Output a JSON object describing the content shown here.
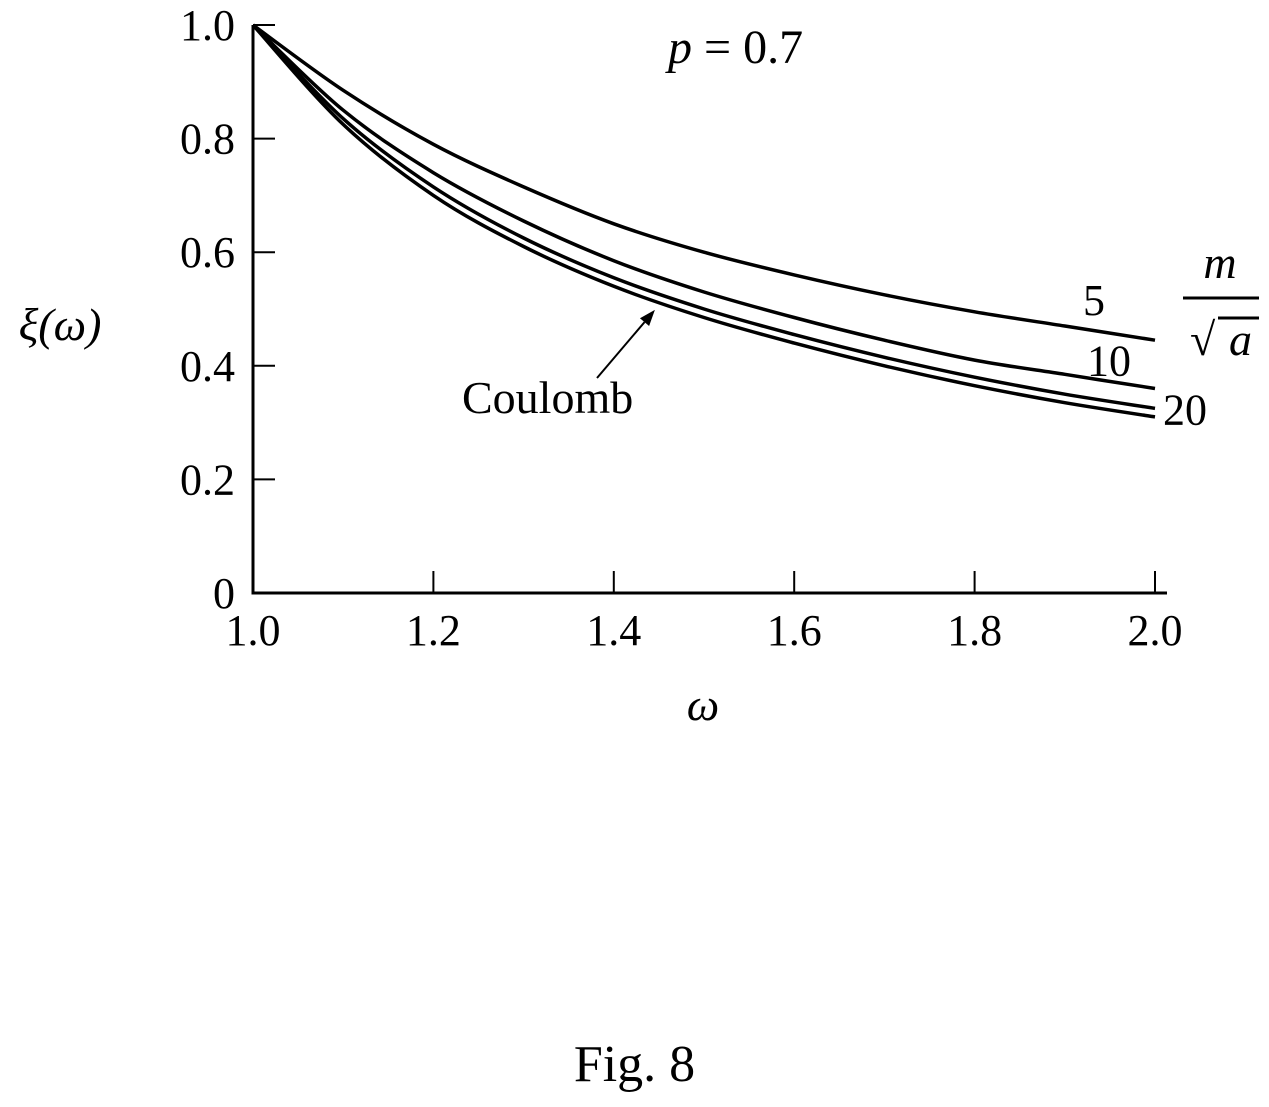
{
  "chart_data": {
    "type": "line",
    "title": "p = 0.7",
    "title_var": "p",
    "title_rest": " = 0.7",
    "xlabel": "ω",
    "ylabel": "ξ(ω)",
    "xlim": [
      1.0,
      2.0
    ],
    "ylim": [
      0,
      1.0
    ],
    "x_ticks": [
      1.0,
      1.2,
      1.4,
      1.6,
      1.8,
      2.0
    ],
    "x_tick_labels": [
      "1.0",
      "1.2",
      "1.4",
      "1.6",
      "1.8",
      "2.0"
    ],
    "y_ticks": [
      0,
      0.2,
      0.4,
      0.6,
      0.8,
      1.0
    ],
    "y_tick_labels": [
      "0",
      "0.2",
      "0.4",
      "0.6",
      "0.8",
      "1.0"
    ],
    "grid": false,
    "legend_title": {
      "numerator": "m",
      "denominator": "a",
      "radical": "√"
    },
    "series": [
      {
        "name": "5",
        "x": [
          1.0,
          1.1,
          1.2,
          1.3,
          1.4,
          1.5,
          1.6,
          1.7,
          1.8,
          1.9,
          2.0
        ],
        "y": [
          1.0,
          0.885,
          0.79,
          0.715,
          0.65,
          0.6,
          0.56,
          0.525,
          0.495,
          0.47,
          0.445
        ]
      },
      {
        "name": "10",
        "x": [
          1.0,
          1.1,
          1.2,
          1.3,
          1.4,
          1.5,
          1.6,
          1.7,
          1.8,
          1.9,
          2.0
        ],
        "y": [
          1.0,
          0.85,
          0.74,
          0.655,
          0.585,
          0.53,
          0.485,
          0.445,
          0.41,
          0.385,
          0.36
        ]
      },
      {
        "name": "20",
        "x": [
          1.0,
          1.1,
          1.2,
          1.3,
          1.4,
          1.5,
          1.6,
          1.7,
          1.8,
          1.9,
          2.0
        ],
        "y": [
          1.0,
          0.835,
          0.715,
          0.625,
          0.555,
          0.5,
          0.455,
          0.415,
          0.38,
          0.35,
          0.325
        ]
      },
      {
        "name": "Coulomb",
        "x": [
          1.0,
          1.1,
          1.2,
          1.3,
          1.4,
          1.5,
          1.6,
          1.7,
          1.8,
          1.9,
          2.0
        ],
        "y": [
          1.0,
          0.825,
          0.7,
          0.61,
          0.54,
          0.485,
          0.44,
          0.4,
          0.365,
          0.335,
          0.31
        ]
      }
    ],
    "annotation": {
      "text": "Coulomb",
      "points_to_series": "Coulomb",
      "at_x": 1.45
    }
  },
  "caption": "Fig. 8"
}
